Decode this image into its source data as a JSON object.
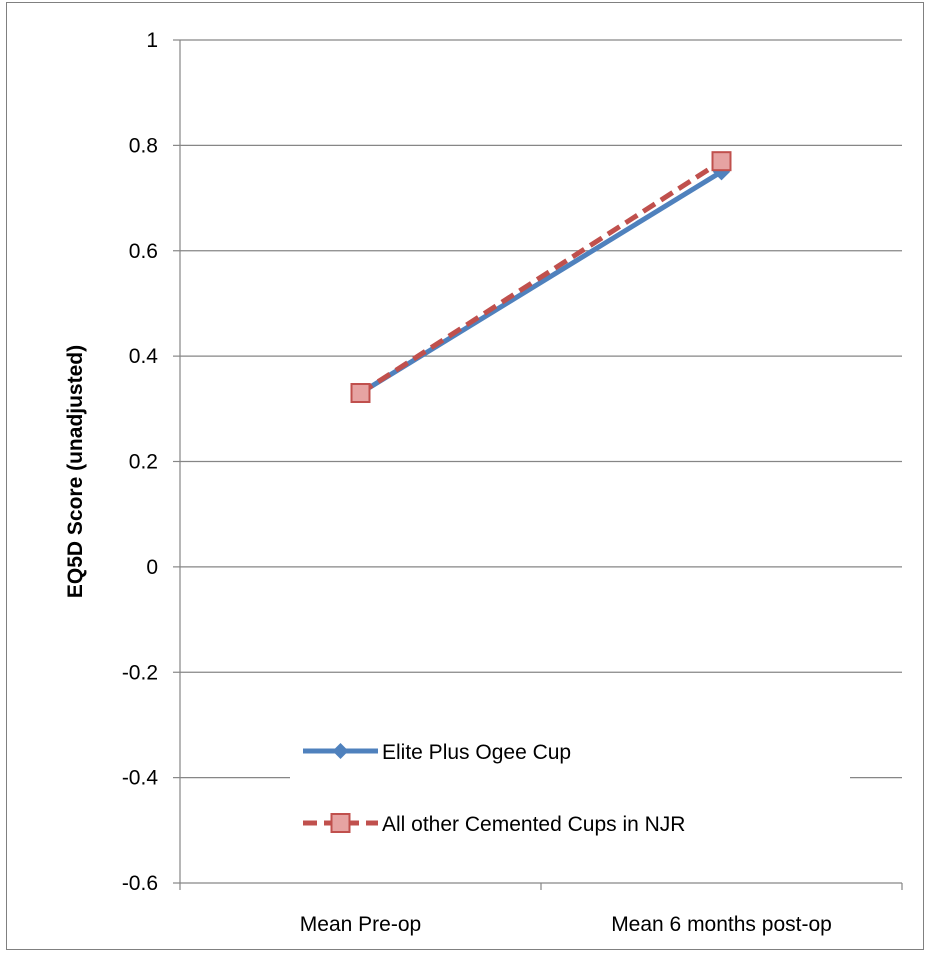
{
  "chart_data": {
    "type": "line",
    "title": "",
    "xlabel": "",
    "ylabel": "EQ5D Score (unadjusted)",
    "categories": [
      "Mean Pre-op",
      "Mean 6 months post-op"
    ],
    "ylim": [
      -0.6,
      1
    ],
    "yticks": [
      -0.6,
      -0.4,
      -0.2,
      0,
      0.2,
      0.4,
      0.6,
      0.8,
      1
    ],
    "ytick_labels": [
      "-0.6",
      "-0.4",
      "-0.2",
      "0",
      "0.2",
      "0.4",
      "0.6",
      "0.8",
      "1"
    ],
    "grid": true,
    "legend_position": "bottom-center (inside plot)",
    "series": [
      {
        "name": "Elite Plus Ogee Cup",
        "values": [
          0.33,
          0.75
        ],
        "color": "#4f81bd",
        "marker": "diamond",
        "line": "solid"
      },
      {
        "name": "All other Cemented Cups in NJR",
        "values": [
          0.33,
          0.77
        ],
        "color": "#c0504d",
        "marker": "square",
        "line": "dashed"
      }
    ]
  }
}
